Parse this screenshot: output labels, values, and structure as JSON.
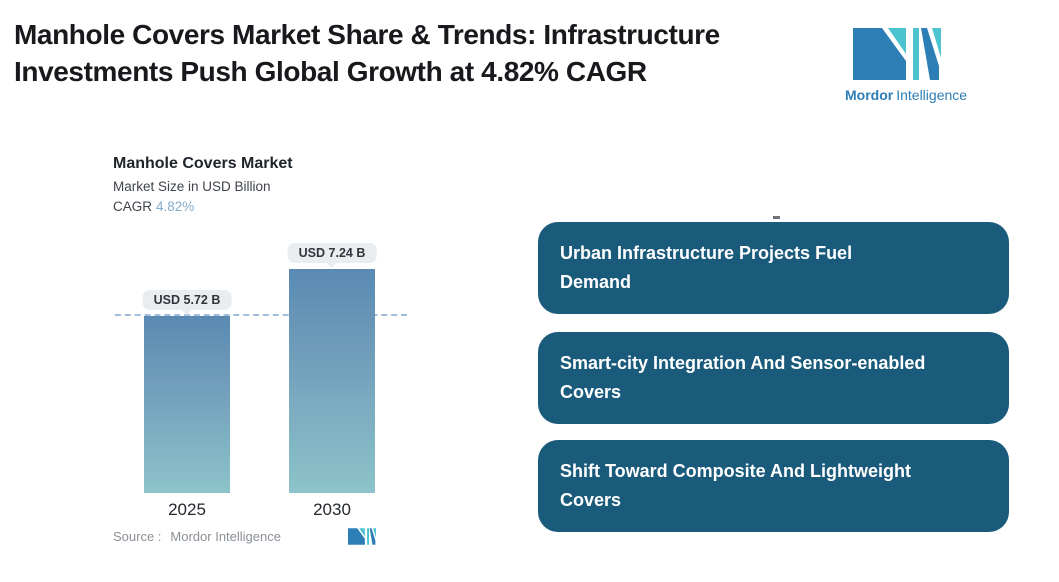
{
  "header": {
    "title_line1": "Manhole Covers Market Share & Trends: Infrastructure",
    "title_line2": "Investments Push Global Growth at 4.82% CAGR",
    "logo": {
      "brand_bold": "Mordor",
      "brand_regular": "Intelligence"
    }
  },
  "chart": {
    "title": "Manhole Covers Market",
    "subtitle": "Market Size in USD Billion",
    "cagr_label": "CAGR",
    "cagr_value": "4.82%",
    "source_label": "Source :",
    "source_value": "Mordor Intelligence"
  },
  "chart_data": {
    "type": "bar",
    "title": "Manhole Covers Market",
    "ylabel": "Market Size in USD Billion",
    "cagr": "4.82%",
    "categories": [
      "2025",
      "2030"
    ],
    "values": [
      5.72,
      7.24
    ],
    "value_labels": [
      "USD 5.72 B",
      "USD 7.24 B"
    ],
    "units": "USD Billion",
    "ylim": [
      0,
      7.9
    ],
    "reference_line": 5.72,
    "grid": false,
    "legend": "none",
    "bar_gradient_top": "#5a8ab3",
    "bar_gradient_bottom": "#8dc3ca",
    "reference_line_color": "#a3bedb"
  },
  "drivers": [
    {
      "lines": [
        "Urban Infrastructure Projects Fuel",
        "Demand"
      ]
    },
    {
      "lines": [
        "Smart-city Integration And Sensor-enabled",
        "Covers"
      ]
    },
    {
      "lines": [
        "Shift Toward Composite And Lightweight",
        "Covers"
      ]
    }
  ],
  "colors": {
    "callout_bg": "#1a5a7b",
    "callout_text": "#ffffff",
    "title_text": "#17191c",
    "cagr_accent": "#84adcc",
    "bubble_bg": "#e9edef",
    "logo_blue": "#2e7eb6",
    "logo_teal": "#4cc4cf",
    "source_text": "#8a9097"
  }
}
